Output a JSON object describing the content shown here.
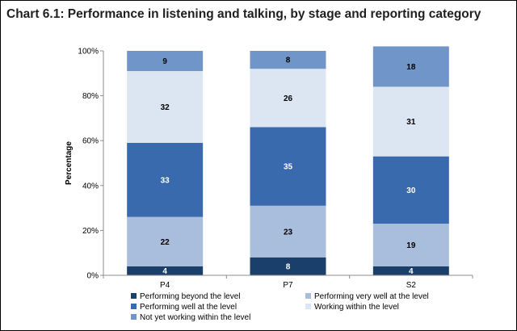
{
  "chart_data": {
    "type": "bar",
    "stacked": true,
    "percent_stacked": true,
    "title": "Chart 6.1: Performance in listening and talking, by stage and reporting category",
    "xlabel": "",
    "ylabel": "Percentage",
    "ylim": [
      0,
      100
    ],
    "y_ticks": [
      {
        "value": 0,
        "label": "0%"
      },
      {
        "value": 20,
        "label": "20%"
      },
      {
        "value": 40,
        "label": "40%"
      },
      {
        "value": 60,
        "label": "60%"
      },
      {
        "value": 80,
        "label": "80%"
      },
      {
        "value": 100,
        "label": "100%"
      }
    ],
    "grid": false,
    "legend_position": "bottom",
    "categories": [
      "P4",
      "P7",
      "S2"
    ],
    "series": [
      {
        "name": "Performing beyond the level",
        "color": "#1b3f6b",
        "label_color": "#ffffff",
        "values": [
          4,
          8,
          4
        ]
      },
      {
        "name": "Performing very well at the level",
        "color": "#a9bddc",
        "label_color": "#000000",
        "values": [
          22,
          23,
          19
        ]
      },
      {
        "name": "Performing well at the level",
        "color": "#3a6aae",
        "label_color": "#ffffff",
        "values": [
          33,
          35,
          30
        ]
      },
      {
        "name": "Working within the level",
        "color": "#dce5f2",
        "label_color": "#000000",
        "values": [
          32,
          26,
          31
        ]
      },
      {
        "name": "Not yet working within the level",
        "color": "#7096c9",
        "label_color": "#000000",
        "values": [
          9,
          8,
          18
        ]
      }
    ]
  }
}
